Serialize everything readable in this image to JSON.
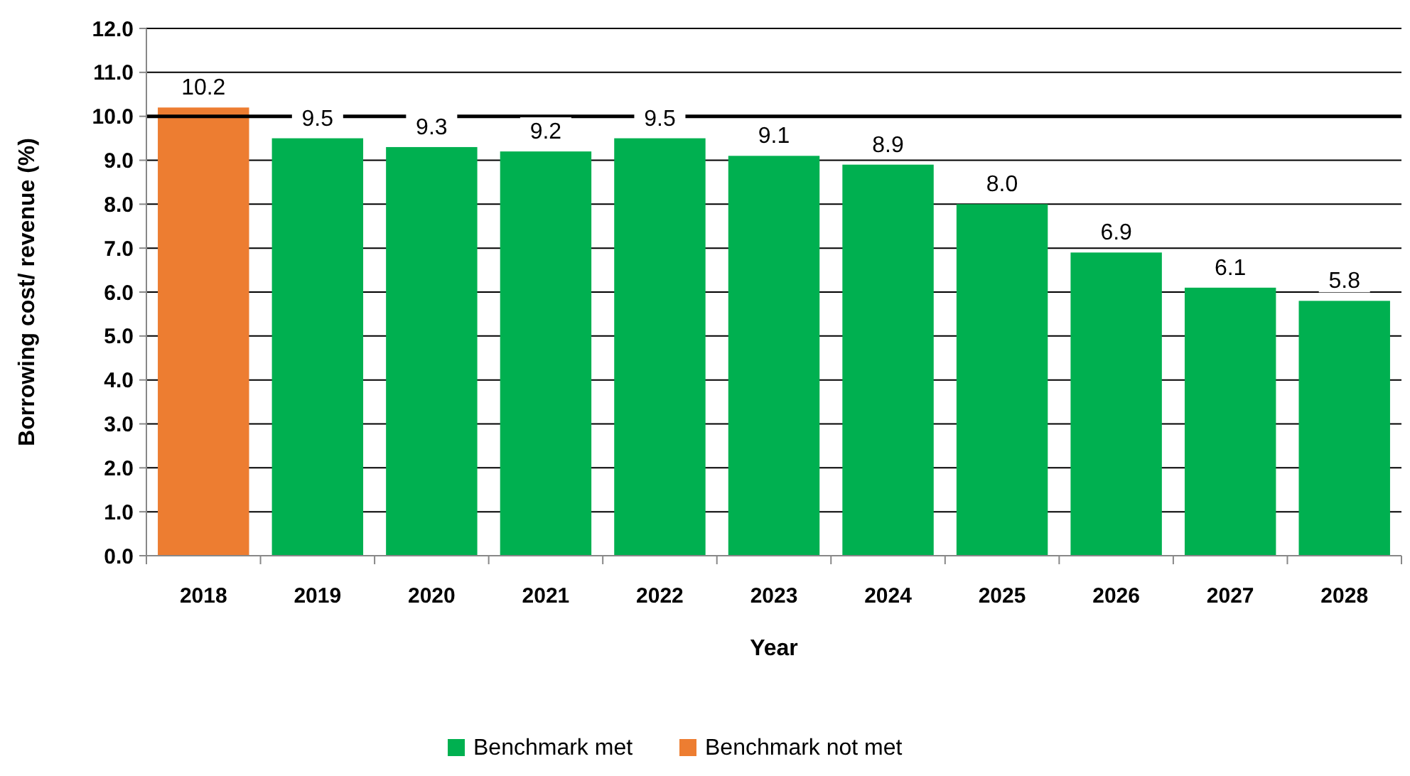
{
  "chart_data": {
    "type": "bar",
    "xlabel": "Year",
    "ylabel": "Borrowing cost/ revenue (%)",
    "categories": [
      "2018",
      "2019",
      "2020",
      "2021",
      "2022",
      "2023",
      "2024",
      "2025",
      "2026",
      "2027",
      "2028"
    ],
    "series": [
      {
        "name": "Benchmark met",
        "color": "#00b050",
        "values": [
          null,
          9.5,
          9.3,
          9.2,
          9.5,
          9.1,
          8.9,
          8.0,
          6.9,
          6.1,
          5.8
        ],
        "value_labels": [
          null,
          "9.5",
          "9.3",
          "9.2",
          "9.5",
          "9.1",
          "8.9",
          "8.0",
          "6.9",
          "6.1",
          "5.8"
        ]
      },
      {
        "name": "Benchmark not met",
        "color": "#ed7d31",
        "values": [
          10.2,
          null,
          null,
          null,
          null,
          null,
          null,
          null,
          null,
          null,
          null
        ],
        "value_labels": [
          "10.2",
          null,
          null,
          null,
          null,
          null,
          null,
          null,
          null,
          null,
          null
        ]
      }
    ],
    "ylim": [
      0,
      12
    ],
    "yticks": [
      {
        "value": 0,
        "label": "0.0"
      },
      {
        "value": 1,
        "label": "1.0"
      },
      {
        "value": 2,
        "label": "2.0"
      },
      {
        "value": 3,
        "label": "3.0"
      },
      {
        "value": 4,
        "label": "4.0"
      },
      {
        "value": 5,
        "label": "5.0"
      },
      {
        "value": 6,
        "label": "6.0"
      },
      {
        "value": 7,
        "label": "7.0"
      },
      {
        "value": 8,
        "label": "8.0"
      },
      {
        "value": 9,
        "label": "9.0"
      },
      {
        "value": 10,
        "label": "10.0"
      },
      {
        "value": 11,
        "label": "11.0"
      },
      {
        "value": 12,
        "label": "12.0"
      }
    ],
    "grid": "y",
    "ref_lines": [
      {
        "axis": "y",
        "value": 10,
        "color": "#000000"
      }
    ],
    "legend": "bottom"
  }
}
